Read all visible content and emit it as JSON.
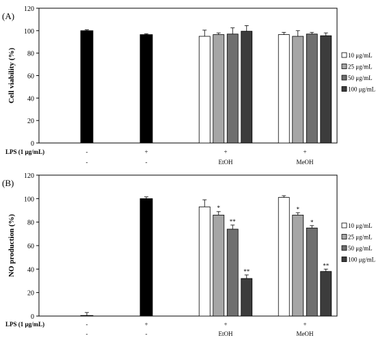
{
  "chart_data": [
    {
      "type": "bar",
      "panel_label": "(A)",
      "ylabel": "Cell viability (%)",
      "ylim": [
        0,
        120
      ],
      "yticks": [
        0,
        20,
        40,
        60,
        80,
        100,
        120
      ],
      "groups": [
        {
          "lps": "-",
          "extract": "-"
        },
        {
          "lps": "+",
          "extract": "-"
        },
        {
          "lps": "+",
          "extract": "EtOH"
        },
        {
          "lps": "+",
          "extract": "MeOH"
        }
      ],
      "row_labels": [
        "LPS (1 μg/mL)",
        ""
      ],
      "bars": [
        {
          "group": 0,
          "value": 100,
          "error": 0.8,
          "color": "#000000",
          "marker": ""
        },
        {
          "group": 1,
          "value": 96.5,
          "error": 0.8,
          "color": "#000000",
          "marker": ""
        },
        {
          "group": 2,
          "series": 0,
          "value": 95,
          "error": 5.5,
          "marker": ""
        },
        {
          "group": 2,
          "series": 1,
          "value": 96.5,
          "error": 1.5,
          "marker": ""
        },
        {
          "group": 2,
          "series": 2,
          "value": 97,
          "error": 5.5,
          "marker": ""
        },
        {
          "group": 2,
          "series": 3,
          "value": 99.5,
          "error": 5,
          "marker": ""
        },
        {
          "group": 3,
          "series": 0,
          "value": 96.5,
          "error": 2,
          "marker": ""
        },
        {
          "group": 3,
          "series": 1,
          "value": 95,
          "error": 5,
          "marker": ""
        },
        {
          "group": 3,
          "series": 2,
          "value": 97,
          "error": 1.5,
          "marker": ""
        },
        {
          "group": 3,
          "series": 3,
          "value": 95.5,
          "error": 2.5,
          "marker": ""
        }
      ],
      "series": [
        {
          "name": "10 μg/mL",
          "color": "#ffffff"
        },
        {
          "name": "25 μg/mL",
          "color": "#a6a6a6"
        },
        {
          "name": "50 μg/mL",
          "color": "#6f6f6f"
        },
        {
          "name": "100 μg/mL",
          "color": "#3c3c3c"
        }
      ]
    },
    {
      "type": "bar",
      "panel_label": "(B)",
      "ylabel": "NO production (%)",
      "ylim": [
        0,
        120
      ],
      "yticks": [
        0,
        20,
        40,
        60,
        80,
        100,
        120
      ],
      "groups": [
        {
          "lps": "-",
          "extract": "-"
        },
        {
          "lps": "+",
          "extract": "-"
        },
        {
          "lps": "+",
          "extract": "EtOH"
        },
        {
          "lps": "+",
          "extract": "MeOH"
        }
      ],
      "row_labels": [
        "LPS (1 μg/mL)",
        ""
      ],
      "bars": [
        {
          "group": 0,
          "value": 0.5,
          "error": 2.5,
          "color": "#000000",
          "marker": ""
        },
        {
          "group": 1,
          "value": 100,
          "error": 1.5,
          "color": "#000000",
          "marker": ""
        },
        {
          "group": 2,
          "series": 0,
          "value": 93,
          "error": 6,
          "marker": ""
        },
        {
          "group": 2,
          "series": 1,
          "value": 86,
          "error": 3,
          "marker": "*"
        },
        {
          "group": 2,
          "series": 2,
          "value": 74,
          "error": 3.5,
          "marker": "**"
        },
        {
          "group": 2,
          "series": 3,
          "value": 32,
          "error": 3,
          "marker": "**"
        },
        {
          "group": 3,
          "series": 0,
          "value": 101,
          "error": 1.5,
          "marker": ""
        },
        {
          "group": 3,
          "series": 1,
          "value": 86,
          "error": 2,
          "marker": "*"
        },
        {
          "group": 3,
          "series": 2,
          "value": 75,
          "error": 2,
          "marker": "*"
        },
        {
          "group": 3,
          "series": 3,
          "value": 38,
          "error": 2,
          "marker": "**"
        }
      ],
      "series": [
        {
          "name": "10 μg/mL",
          "color": "#ffffff"
        },
        {
          "name": "25 μg/mL",
          "color": "#a6a6a6"
        },
        {
          "name": "50 μg/mL",
          "color": "#6f6f6f"
        },
        {
          "name": "100 μg/mL",
          "color": "#3c3c3c"
        }
      ]
    }
  ]
}
